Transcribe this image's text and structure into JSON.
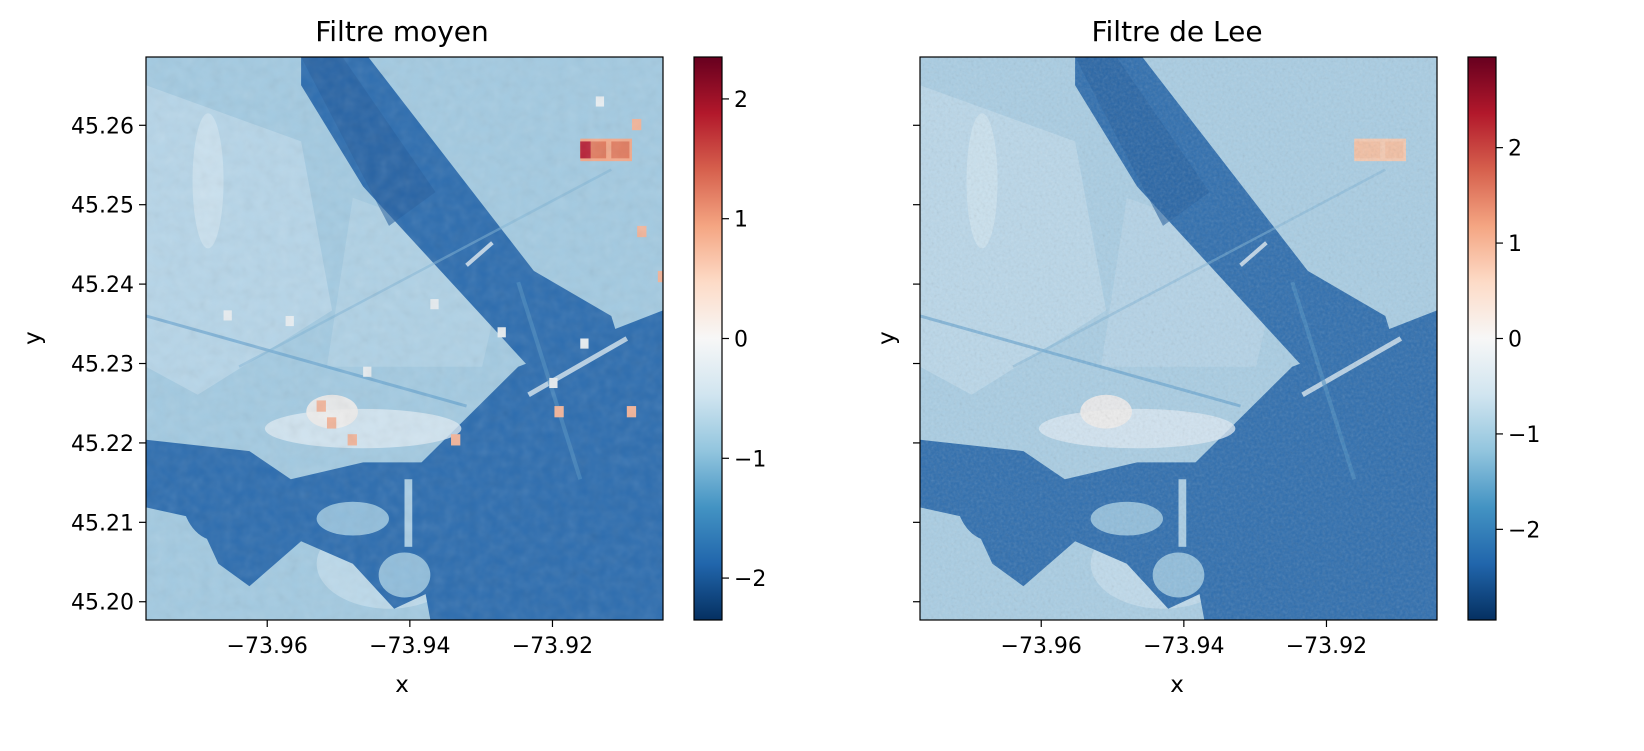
{
  "chart_data": [
    {
      "type": "heatmap",
      "title": "Filtre moyen",
      "xlabel": "x",
      "ylabel": "y",
      "xlim": [
        -73.977,
        -73.9045
      ],
      "ylim": [
        45.1977,
        45.2686
      ],
      "x_ticks": [
        -73.96,
        -73.94,
        -73.92
      ],
      "x_tick_labels": [
        "−73.96",
        "−73.94",
        "−73.92"
      ],
      "y_ticks": [
        45.2,
        45.21,
        45.22,
        45.23,
        45.24,
        45.25,
        45.26
      ],
      "y_tick_labels": [
        "45.20",
        "45.21",
        "45.22",
        "45.23",
        "45.24",
        "45.25",
        "45.26"
      ],
      "colormap": "RdBu_r",
      "colorbar_range": [
        -2.35,
        2.35
      ],
      "colorbar_ticks": [
        -2,
        -1,
        0,
        1,
        2
      ],
      "colorbar_tick_labels": [
        "−2",
        "−1",
        "0",
        "1",
        "2"
      ],
      "grid": false
    },
    {
      "type": "heatmap",
      "title": "Filtre de Lee",
      "xlabel": "x",
      "ylabel": "y",
      "xlim": [
        -73.977,
        -73.9045
      ],
      "ylim": [
        45.1977,
        45.2686
      ],
      "x_ticks": [
        -73.96,
        -73.94,
        -73.92
      ],
      "x_tick_labels": [
        "−73.96",
        "−73.94",
        "−73.92"
      ],
      "y_ticks": [
        45.2,
        45.21,
        45.22,
        45.23,
        45.24,
        45.25,
        45.26
      ],
      "y_tick_labels": [],
      "colormap": "RdBu_r",
      "colorbar_range": [
        -2.95,
        2.95
      ],
      "colorbar_ticks": [
        -2,
        -1,
        0,
        1,
        2
      ],
      "colorbar_tick_labels": [
        "−2",
        "−1",
        "0",
        "1",
        "2"
      ],
      "grid": false
    }
  ]
}
